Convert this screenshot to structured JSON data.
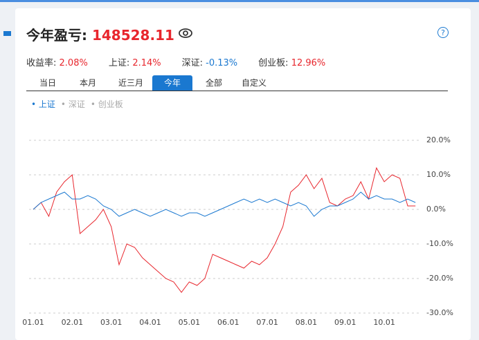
{
  "header": {
    "title": "今年盈亏: ",
    "value": "148528.11"
  },
  "stats": [
    {
      "label": "收益率: ",
      "value": "2.08%"
    },
    {
      "label": "上证: ",
      "value": "2.14%"
    },
    {
      "label": "深证: ",
      "value": "-0.13%"
    },
    {
      "label": "创业板: ",
      "value": "12.96%"
    }
  ],
  "tabs": [
    "当日",
    "本月",
    "近三月",
    "今年",
    "全部",
    "自定义"
  ],
  "active_tab": 3,
  "legend": [
    "上证",
    "深证",
    "创业板"
  ],
  "chart_data": {
    "type": "line",
    "categories": [
      "01.01",
      null,
      null,
      null,
      null,
      "02.01",
      null,
      null,
      null,
      null,
      "03.01",
      null,
      null,
      null,
      null,
      "04.01",
      null,
      null,
      null,
      null,
      "05.01",
      null,
      null,
      null,
      null,
      "06.01",
      null,
      null,
      null,
      null,
      "07.01",
      null,
      null,
      null,
      null,
      "08.01",
      null,
      null,
      null,
      null,
      "09.01",
      null,
      null,
      null,
      null,
      "10.01",
      null,
      null,
      null,
      null
    ],
    "series": [
      {
        "color": "#e8262d",
        "values": [
          0,
          2,
          -2,
          5,
          8,
          10,
          -7,
          -5,
          -3,
          0,
          -5,
          -16,
          -10,
          -11,
          -14,
          -16,
          -18,
          -20,
          -21,
          -24,
          -21,
          -22,
          -20,
          -13,
          -14,
          -15,
          -16,
          -17,
          -15,
          -16,
          -14,
          -10,
          -5,
          5,
          7,
          10,
          6,
          9,
          2,
          1,
          3,
          4,
          8,
          3,
          12,
          8,
          10,
          9,
          1,
          1
        ]
      },
      {
        "name": "上证",
        "color": "#1a78d0",
        "values": [
          0,
          2,
          3,
          4,
          5,
          3,
          3,
          4,
          3,
          1,
          0,
          -2,
          -1,
          0,
          -1,
          -2,
          -1,
          0,
          -1,
          -2,
          -1,
          -1,
          -2,
          -1,
          0,
          1,
          2,
          3,
          2,
          3,
          2,
          3,
          2,
          1,
          2,
          1,
          -2,
          0,
          1,
          1,
          2,
          3,
          5,
          3,
          4,
          3,
          3,
          2,
          3,
          2
        ]
      }
    ],
    "ylim": [
      -30,
      20
    ],
    "yticks": [
      {
        "value": 20,
        "label": "20.0%"
      },
      {
        "value": 10,
        "label": "10.0%"
      },
      {
        "value": 0,
        "label": "0.0%"
      },
      {
        "value": -10,
        "label": "-10.0%"
      },
      {
        "value": -20,
        "label": "-20.0%"
      },
      {
        "value": -30,
        "label": "-30.0%"
      }
    ],
    "grid": true
  }
}
